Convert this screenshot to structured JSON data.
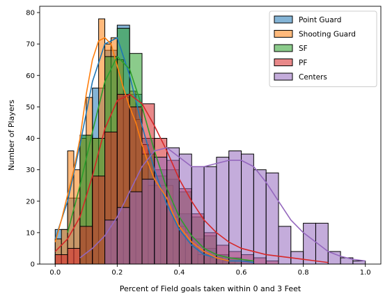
{
  "chart_data": {
    "type": "histogram",
    "xlabel": "Percent of Field goals taken within 0 and 3 Feet",
    "ylabel": "Number of Players",
    "xlim": [
      -0.05,
      1.05
    ],
    "ylim": [
      0,
      82
    ],
    "xticks": [
      "0.0",
      "0.2",
      "0.4",
      "0.6",
      "0.8",
      "1.0"
    ],
    "xtick_values": [
      0,
      0.2,
      0.4,
      0.6,
      0.8,
      1.0
    ],
    "yticks": [
      "0",
      "10",
      "20",
      "30",
      "40",
      "50",
      "60",
      "70",
      "80"
    ],
    "ytick_values": [
      0,
      10,
      20,
      30,
      40,
      50,
      60,
      70,
      80
    ],
    "grid": false,
    "legend_position": "top-right",
    "series": [
      {
        "name": "Point Guard",
        "color": "#1f77b4",
        "bin_starts": [
          0.0,
          0.04,
          0.08,
          0.12,
          0.16,
          0.2,
          0.24,
          0.28,
          0.32,
          0.36,
          0.4,
          0.44,
          0.48,
          0.52,
          0.56,
          0.6
        ],
        "bin_width": 0.04,
        "counts": [
          11,
          21,
          41,
          56,
          68,
          76,
          54,
          40,
          30,
          27,
          16,
          8,
          5,
          3,
          2,
          1
        ],
        "kde_x": [
          0,
          0.04,
          0.08,
          0.12,
          0.16,
          0.2,
          0.24,
          0.28,
          0.32,
          0.36,
          0.4,
          0.44,
          0.48,
          0.52,
          0.56,
          0.6,
          0.64
        ],
        "kde_y": [
          8,
          20,
          38,
          58,
          70,
          72,
          60,
          44,
          30,
          19,
          11,
          6,
          3,
          2,
          1,
          1,
          0.5
        ]
      },
      {
        "name": "Shooting Guard",
        "color": "#ff7f0e",
        "bin_starts": [
          0.0,
          0.02,
          0.04,
          0.06,
          0.08,
          0.1,
          0.12,
          0.14,
          0.16,
          0.18,
          0.2,
          0.22,
          0.24,
          0.26,
          0.28,
          0.3,
          0.32,
          0.34,
          0.36,
          0.38,
          0.4,
          0.42,
          0.44,
          0.46,
          0.48,
          0.5,
          0.52,
          0.54,
          0.56
        ],
        "bin_width": 0.02,
        "counts": [
          8,
          11,
          36,
          30,
          40,
          53,
          40,
          78,
          70,
          72,
          65,
          53,
          55,
          46,
          38,
          25,
          25,
          25,
          25,
          15,
          12,
          10,
          6,
          3,
          3,
          2,
          2,
          1,
          1
        ],
        "kde_x": [
          0,
          0.02,
          0.04,
          0.06,
          0.08,
          0.1,
          0.12,
          0.14,
          0.16,
          0.18,
          0.2,
          0.22,
          0.24,
          0.26,
          0.28,
          0.3,
          0.32,
          0.34,
          0.36,
          0.38,
          0.4,
          0.44,
          0.48,
          0.52,
          0.56
        ],
        "kde_y": [
          7,
          14,
          22,
          30,
          40,
          54,
          65,
          71,
          72,
          70,
          63,
          56,
          50,
          45,
          38,
          32,
          27,
          24,
          21,
          16,
          12,
          7,
          4,
          2,
          1
        ]
      },
      {
        "name": "SF",
        "color": "#2ca02c",
        "bin_starts": [
          0.08,
          0.12,
          0.16,
          0.2,
          0.24,
          0.28,
          0.32,
          0.36,
          0.4,
          0.44,
          0.48,
          0.52,
          0.56
        ],
        "bin_width": 0.04,
        "counts": [
          41,
          40,
          66,
          75,
          67,
          35,
          28,
          30,
          23,
          15,
          9,
          3,
          2
        ],
        "kde_x": [
          0.04,
          0.08,
          0.12,
          0.16,
          0.2,
          0.24,
          0.28,
          0.32,
          0.36,
          0.4,
          0.44,
          0.48,
          0.52,
          0.56,
          0.6,
          0.64
        ],
        "kde_y": [
          10,
          25,
          42,
          58,
          66,
          62,
          50,
          36,
          24,
          15,
          9,
          5,
          3,
          2,
          1.5,
          1
        ]
      },
      {
        "name": "PF",
        "color": "#d62728",
        "bin_starts": [
          0.0,
          0.04,
          0.08,
          0.12,
          0.16,
          0.2,
          0.24,
          0.28,
          0.32,
          0.36,
          0.4,
          0.44,
          0.48,
          0.52,
          0.56,
          0.6,
          0.64,
          0.68
        ],
        "bin_width": 0.04,
        "counts": [
          3,
          5,
          12,
          28,
          42,
          54,
          50,
          51,
          40,
          33,
          24,
          16,
          10,
          6,
          4,
          3,
          2,
          1
        ],
        "kde_x": [
          0,
          0.04,
          0.08,
          0.12,
          0.16,
          0.2,
          0.24,
          0.28,
          0.32,
          0.36,
          0.4,
          0.44,
          0.48,
          0.52,
          0.56,
          0.6,
          0.64,
          0.68,
          0.72,
          0.76,
          0.8,
          0.84,
          0.88
        ],
        "kde_y": [
          4,
          8,
          15,
          28,
          43,
          52,
          54,
          51,
          44,
          36,
          27,
          20,
          14,
          10,
          7,
          5,
          4,
          3,
          2.5,
          2,
          1.5,
          1,
          0.5
        ]
      },
      {
        "name": "Centers",
        "color": "#9467bd",
        "bin_starts": [
          0.16,
          0.2,
          0.24,
          0.28,
          0.32,
          0.36,
          0.4,
          0.44,
          0.48,
          0.52,
          0.56,
          0.6,
          0.64,
          0.68,
          0.72,
          0.76,
          0.8,
          0.84,
          0.88,
          0.92,
          0.96
        ],
        "bin_width": 0.04,
        "counts": [
          14,
          18,
          23,
          27,
          34,
          37,
          35,
          31,
          31,
          34,
          36,
          35,
          30,
          29,
          12,
          4,
          13,
          13,
          4,
          2,
          1
        ],
        "kde_x": [
          0.08,
          0.12,
          0.16,
          0.2,
          0.24,
          0.28,
          0.32,
          0.36,
          0.4,
          0.44,
          0.48,
          0.52,
          0.56,
          0.6,
          0.64,
          0.68,
          0.72,
          0.76,
          0.8,
          0.84,
          0.88,
          0.92,
          0.96,
          1.0
        ],
        "kde_y": [
          2,
          5,
          9,
          15,
          23,
          31,
          36,
          37,
          34,
          31,
          31,
          32,
          33,
          33,
          31,
          26,
          20,
          14,
          10,
          7,
          4,
          2.5,
          1.5,
          1
        ]
      }
    ]
  }
}
